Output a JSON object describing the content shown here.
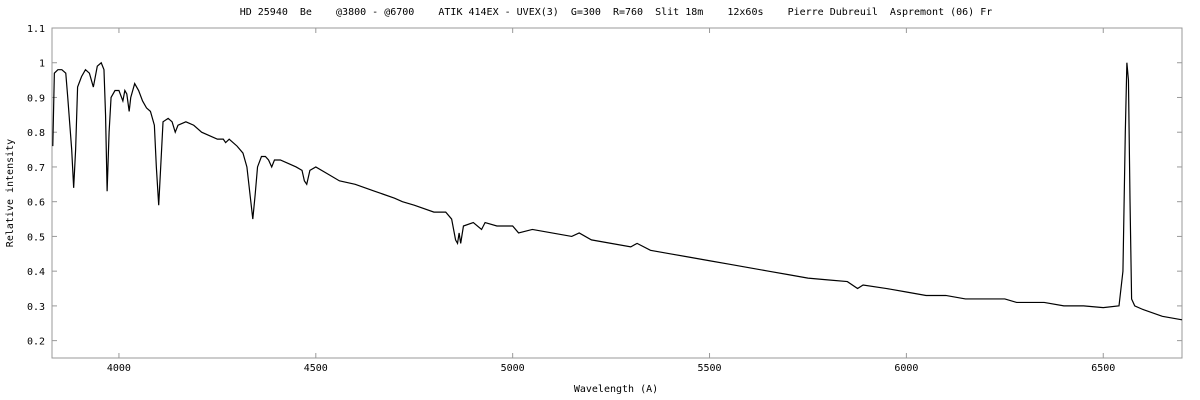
{
  "chart_data": {
    "type": "line",
    "title": "HD 25940  Be    @3800 - @6700    ATIK 414EX - UVEX(3)  G=300  R=760  Slit 18m    12x60s    Pierre Dubreuil  Aspremont (06) Fr",
    "x_label": "Wavelength (A)",
    "y_label": "Relative intensity",
    "xlim": [
      3830,
      6700
    ],
    "ylim": [
      0.15,
      1.1
    ],
    "xticks": [
      4000,
      4500,
      5000,
      5500,
      6000,
      6500
    ],
    "yticks": [
      0.2,
      0.3,
      0.4,
      0.5,
      0.6,
      0.7,
      0.8,
      0.9,
      1,
      1.1
    ],
    "x": [
      3832,
      3836,
      3845,
      3855,
      3865,
      3870,
      3880,
      3885,
      3890,
      3895,
      3905,
      3915,
      3925,
      3935,
      3945,
      3955,
      3962,
      3966,
      3970,
      3975,
      3980,
      3990,
      4000,
      4010,
      4015,
      4020,
      4026,
      4030,
      4040,
      4050,
      4060,
      4070,
      4080,
      4090,
      4095,
      4101,
      4107,
      4112,
      4125,
      4135,
      4143,
      4150,
      4170,
      4190,
      4210,
      4230,
      4250,
      4265,
      4271,
      4280,
      4300,
      4315,
      4325,
      4335,
      4340,
      4346,
      4352,
      4362,
      4372,
      4380,
      4388,
      4395,
      4410,
      4430,
      4450,
      4465,
      4471,
      4477,
      4485,
      4500,
      4530,
      4560,
      4600,
      4650,
      4700,
      4720,
      4750,
      4800,
      4830,
      4845,
      4855,
      4860,
      4864,
      4868,
      4875,
      4900,
      4921,
      4930,
      4960,
      5000,
      5015,
      5050,
      5100,
      5150,
      5169,
      5200,
      5250,
      5300,
      5316,
      5350,
      5400,
      5450,
      5500,
      5550,
      5600,
      5650,
      5700,
      5750,
      5800,
      5850,
      5876,
      5890,
      5950,
      6000,
      6050,
      6100,
      6150,
      6200,
      6250,
      6280,
      6300,
      6350,
      6400,
      6450,
      6500,
      6540,
      6550,
      6556,
      6560,
      6564,
      6568,
      6572,
      6580,
      6600,
      6650,
      6700
    ],
    "series": [
      {
        "name": "HD 25940",
        "color": "#000000",
        "values": [
          0.76,
          0.97,
          0.98,
          0.98,
          0.97,
          0.9,
          0.75,
          0.64,
          0.75,
          0.93,
          0.96,
          0.98,
          0.97,
          0.93,
          0.99,
          1.0,
          0.98,
          0.85,
          0.63,
          0.8,
          0.9,
          0.92,
          0.92,
          0.89,
          0.92,
          0.91,
          0.86,
          0.9,
          0.94,
          0.92,
          0.89,
          0.87,
          0.86,
          0.82,
          0.7,
          0.59,
          0.72,
          0.83,
          0.84,
          0.83,
          0.8,
          0.82,
          0.83,
          0.82,
          0.8,
          0.79,
          0.78,
          0.78,
          0.77,
          0.78,
          0.76,
          0.74,
          0.7,
          0.6,
          0.55,
          0.62,
          0.7,
          0.73,
          0.73,
          0.72,
          0.7,
          0.72,
          0.72,
          0.71,
          0.7,
          0.69,
          0.66,
          0.65,
          0.69,
          0.7,
          0.68,
          0.66,
          0.65,
          0.63,
          0.61,
          0.6,
          0.59,
          0.57,
          0.57,
          0.55,
          0.49,
          0.48,
          0.51,
          0.48,
          0.53,
          0.54,
          0.52,
          0.54,
          0.53,
          0.53,
          0.51,
          0.52,
          0.51,
          0.5,
          0.51,
          0.49,
          0.48,
          0.47,
          0.48,
          0.46,
          0.45,
          0.44,
          0.43,
          0.42,
          0.41,
          0.4,
          0.39,
          0.38,
          0.375,
          0.37,
          0.35,
          0.36,
          0.35,
          0.34,
          0.33,
          0.33,
          0.32,
          0.32,
          0.32,
          0.31,
          0.31,
          0.31,
          0.3,
          0.3,
          0.295,
          0.3,
          0.4,
          0.8,
          1.0,
          0.95,
          0.6,
          0.32,
          0.3,
          0.29,
          0.27,
          0.26
        ]
      }
    ]
  }
}
